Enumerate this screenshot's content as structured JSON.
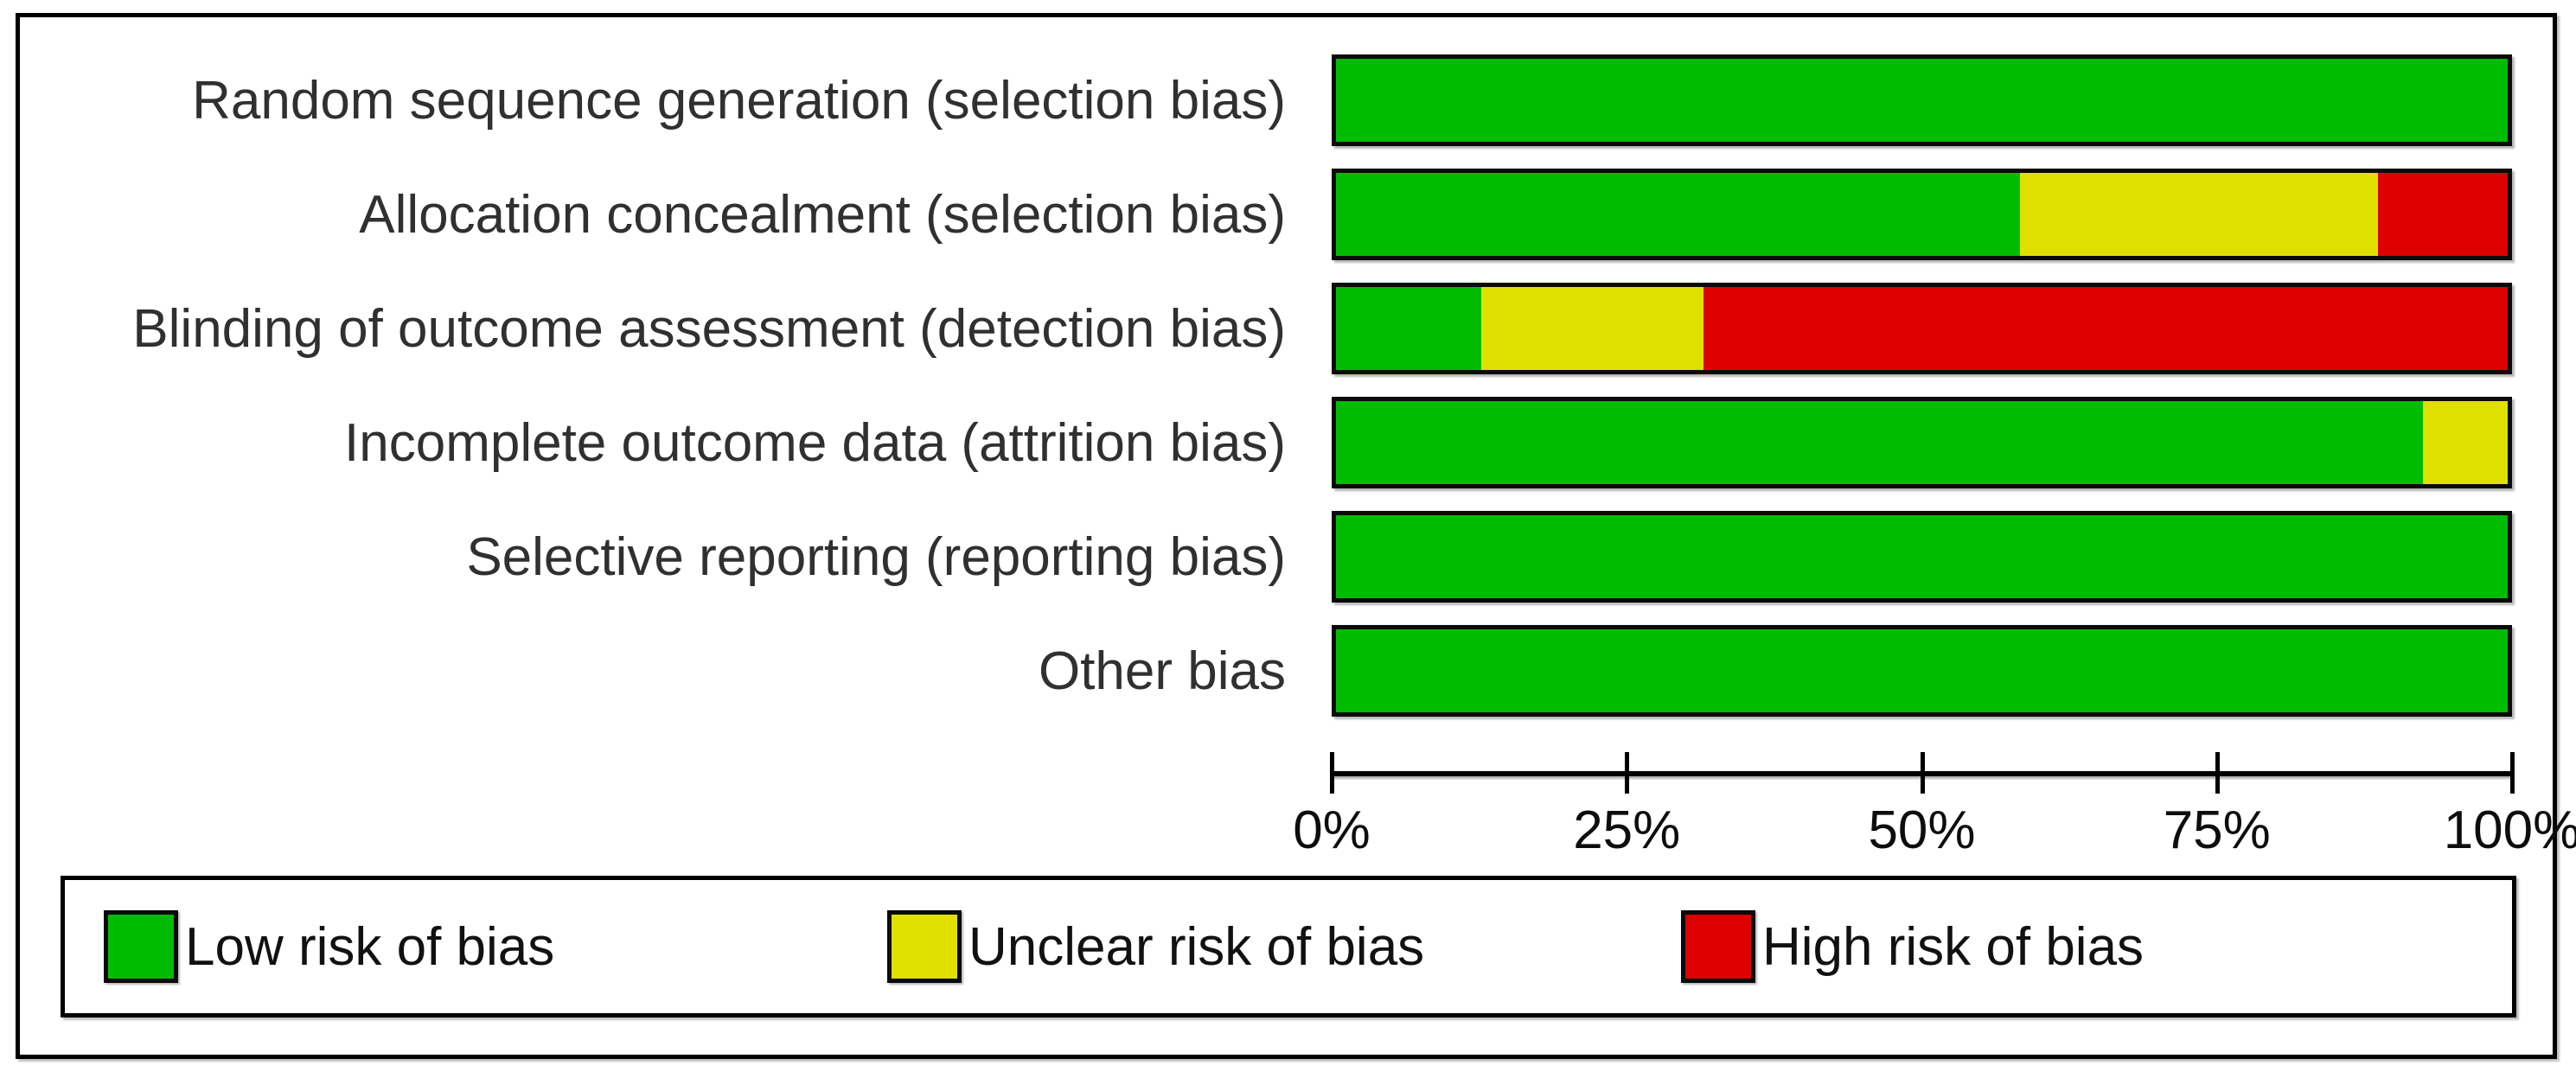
{
  "chart_data": {
    "type": "bar",
    "orientation": "horizontal",
    "stacked": true,
    "unit": "percent",
    "title": "",
    "xlabel": "",
    "ylabel": "",
    "categories": [
      "Random sequence generation (selection bias)",
      "Allocation concealment (selection bias)",
      "Blinding of outcome assessment (detection bias)",
      "Incomplete outcome data (attrition bias)",
      "Selective reporting (reporting bias)",
      "Other bias"
    ],
    "series": [
      {
        "name": "Low risk of bias",
        "color": "#00bc00",
        "values": [
          100,
          58.4,
          12.4,
          92.8,
          100,
          100
        ]
      },
      {
        "name": "Unclear risk of bias",
        "color": "#e0e000",
        "values": [
          0,
          30.5,
          19.0,
          7.2,
          0,
          0
        ]
      },
      {
        "name": "High risk of bias",
        "color": "#dc0000",
        "values": [
          0,
          11.1,
          68.6,
          0,
          0,
          0
        ]
      }
    ],
    "xlim": [
      0,
      100
    ],
    "x_ticks": [
      "0%",
      "25%",
      "50%",
      "75%",
      "100%"
    ],
    "grid": false,
    "legend_position": "bottom"
  }
}
